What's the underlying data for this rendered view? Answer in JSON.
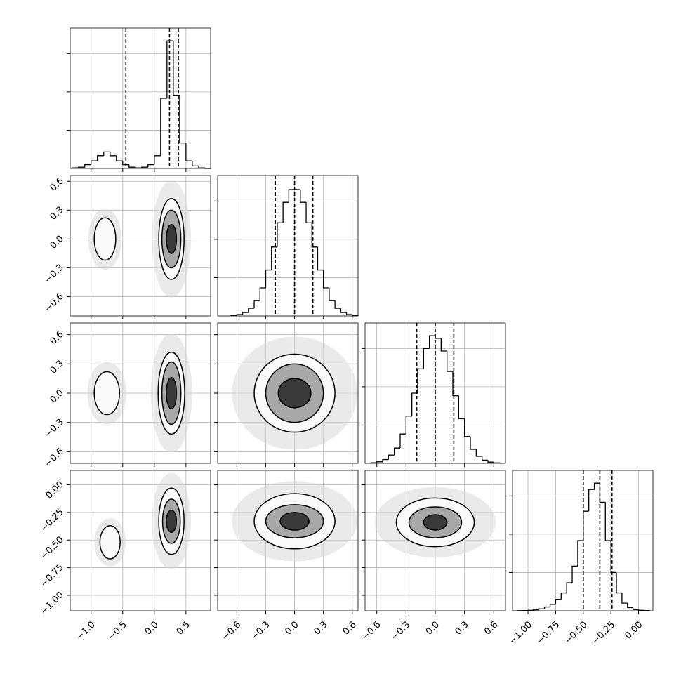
{
  "chart_data": {
    "type": "corner",
    "grid": true,
    "dims": [
      {
        "lim": [
          -1.33,
          0.89
        ],
        "ticks": [
          {
            "value": -1.0,
            "label": "−1.0"
          },
          {
            "value": -0.5,
            "label": "−0.5"
          },
          {
            "value": 0.0,
            "label": "0.0"
          },
          {
            "value": 0.5,
            "label": "0.5"
          }
        ],
        "bins": [
          -1.3,
          -1.2,
          -1.1,
          -1.0,
          -0.9,
          -0.8,
          -0.7,
          -0.6,
          -0.5,
          -0.4,
          -0.3,
          -0.2,
          -0.1,
          0.0,
          0.1,
          0.2,
          0.3,
          0.4,
          0.5,
          0.6,
          0.7,
          0.8,
          0.9
        ],
        "counts": [
          0.005,
          0.01,
          0.03,
          0.06,
          0.1,
          0.13,
          0.1,
          0.06,
          0.03,
          0.01,
          0.005,
          0.01,
          0.03,
          0.1,
          0.55,
          1.0,
          0.57,
          0.2,
          0.06,
          0.02,
          0.005,
          0.0
        ],
        "quantiles": [
          -0.45,
          0.24,
          0.38
        ]
      },
      {
        "lim": [
          -0.8,
          0.66
        ],
        "ticks": [
          {
            "value": -0.6,
            "label": "−0.6"
          },
          {
            "value": -0.3,
            "label": "−0.3"
          },
          {
            "value": 0.0,
            "label": "0.0"
          },
          {
            "value": 0.3,
            "label": "0.3"
          },
          {
            "value": 0.6,
            "label": "0.6"
          }
        ],
        "bins": [
          -0.66,
          -0.6,
          -0.54,
          -0.48,
          -0.42,
          -0.36,
          -0.3,
          -0.24,
          -0.18,
          -0.12,
          -0.06,
          0.0,
          0.06,
          0.12,
          0.18,
          0.24,
          0.3,
          0.36,
          0.42,
          0.48,
          0.54,
          0.6,
          0.66
        ],
        "counts": [
          0.004,
          0.011,
          0.027,
          0.06,
          0.12,
          0.22,
          0.36,
          0.54,
          0.73,
          0.89,
          0.99,
          0.99,
          0.89,
          0.73,
          0.54,
          0.36,
          0.22,
          0.12,
          0.06,
          0.027,
          0.011,
          0.004
        ],
        "quantiles": [
          -0.2,
          0.0,
          0.19
        ]
      },
      {
        "lim": [
          -0.72,
          0.72
        ],
        "ticks": [
          {
            "value": -0.6,
            "label": "−0.6"
          },
          {
            "value": -0.3,
            "label": "−0.3"
          },
          {
            "value": 0.0,
            "label": "0.0"
          },
          {
            "value": 0.3,
            "label": "0.3"
          },
          {
            "value": 0.6,
            "label": "0.6"
          }
        ],
        "bins": [
          -0.66,
          -0.6,
          -0.54,
          -0.48,
          -0.42,
          -0.36,
          -0.3,
          -0.24,
          -0.18,
          -0.12,
          -0.06,
          0.0,
          0.06,
          0.12,
          0.18,
          0.24,
          0.3,
          0.36,
          0.42,
          0.48,
          0.54,
          0.6,
          0.66
        ],
        "counts": [
          0.005,
          0.012,
          0.03,
          0.065,
          0.12,
          0.23,
          0.37,
          0.55,
          0.74,
          0.9,
          1.0,
          0.98,
          0.88,
          0.72,
          0.53,
          0.35,
          0.21,
          0.11,
          0.055,
          0.025,
          0.01,
          0.004
        ],
        "quantiles": [
          -0.19,
          0.0,
          0.19
        ]
      },
      {
        "lim": [
          -1.14,
          0.13
        ],
        "ticks": [
          {
            "value": -1.0,
            "label": "−1.00"
          },
          {
            "value": -0.75,
            "label": "−0.75"
          },
          {
            "value": -0.5,
            "label": "−0.50"
          },
          {
            "value": -0.25,
            "label": "−0.25"
          },
          {
            "value": 0.0,
            "label": "0.00"
          }
        ],
        "bins": [
          -1.1,
          -1.05,
          -1.0,
          -0.95,
          -0.9,
          -0.85,
          -0.8,
          -0.75,
          -0.7,
          -0.65,
          -0.6,
          -0.55,
          -0.5,
          -0.45,
          -0.4,
          -0.35,
          -0.3,
          -0.25,
          -0.2,
          -0.15,
          -0.1,
          -0.05,
          0.0,
          0.05,
          0.1
        ],
        "counts": [
          0.001,
          0.002,
          0.004,
          0.008,
          0.015,
          0.03,
          0.05,
          0.09,
          0.14,
          0.22,
          0.35,
          0.55,
          0.78,
          0.95,
          1.0,
          0.85,
          0.55,
          0.3,
          0.14,
          0.06,
          0.025,
          0.01,
          0.004,
          0.002
        ],
        "quantiles": [
          -0.5,
          -0.35,
          -0.24
        ]
      }
    ],
    "hist_ylim": [
      0,
      1.1
    ],
    "hist_yticks": [
      0.3,
      0.6,
      0.9
    ],
    "pairs": [
      {
        "blobs": [
          {
            "x": -0.78,
            "y": 0.0,
            "rx": [
              0.17
            ],
            "ry": [
              0.22
            ]
          },
          {
            "x": 0.27,
            "y": 0.0,
            "rx": [
              0.2,
              0.15,
              0.08
            ],
            "ry": [
              0.42,
              0.3,
              0.15
            ]
          }
        ]
      },
      {
        "blobs": [
          {
            "x": -0.75,
            "y": 0.0,
            "rx": [
              0.2
            ],
            "ry": [
              0.22
            ]
          },
          {
            "x": 0.27,
            "y": 0.0,
            "rx": [
              0.21,
              0.15,
              0.08
            ],
            "ry": [
              0.42,
              0.32,
              0.16
            ]
          }
        ]
      },
      {
        "blobs": [
          {
            "x": 0.0,
            "y": 0.0,
            "rx": [
              0.42,
              0.3,
              0.17
            ],
            "ry": [
              0.4,
              0.3,
              0.15
            ]
          }
        ]
      },
      {
        "blobs": [
          {
            "x": -0.7,
            "y": -0.52,
            "rx": [
              0.16
            ],
            "ry": [
              0.15
            ]
          },
          {
            "x": 0.27,
            "y": -0.33,
            "rx": [
              0.2,
              0.14,
              0.08
            ],
            "ry": [
              0.3,
              0.2,
              0.1
            ]
          }
        ]
      },
      {
        "blobs": [
          {
            "x": 0.0,
            "y": -0.33,
            "rx": [
              0.42,
              0.3,
              0.15
            ],
            "ry": [
              0.25,
              0.15,
              0.08
            ]
          }
        ]
      },
      {
        "blobs": [
          {
            "x": 0.0,
            "y": -0.34,
            "rx": [
              0.4,
              0.27,
              0.12
            ],
            "ry": [
              0.22,
              0.14,
              0.07
            ]
          }
        ]
      }
    ]
  }
}
